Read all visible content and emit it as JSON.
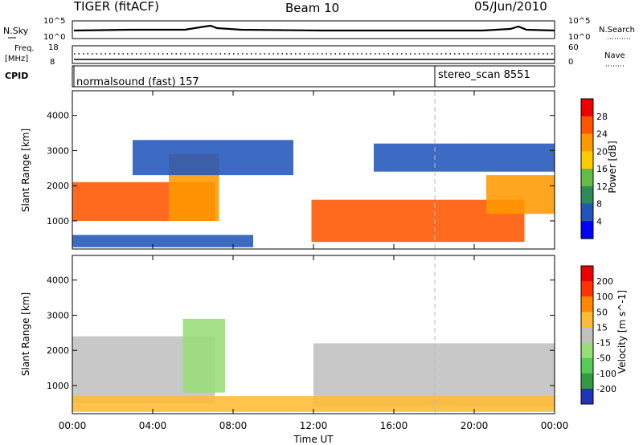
{
  "header": {
    "title": "TIGER (fitACF)",
    "beam": "Beam 10",
    "date": "05/Jun/2010"
  },
  "noise_panel": {
    "left_label": "N.Sky",
    "right_label": "N.Search",
    "left_ticks": [
      "10^5",
      "10^0"
    ],
    "right_ticks": [
      "10^5",
      "10^0"
    ]
  },
  "freq_panel": {
    "left_label_1": "Freq.",
    "left_label_2": "[MHz]",
    "right_label": "Nave",
    "left_ticks": [
      "18",
      "8"
    ],
    "right_ticks": [
      "60",
      "0"
    ]
  },
  "cpid_panel": {
    "label": "CPID",
    "segments": [
      {
        "name": "normalsound (fast) 157",
        "start_hour": 0
      },
      {
        "name": "stereo_scan 8551",
        "start_hour": 18
      }
    ]
  },
  "time_axis": {
    "label": "Time UT",
    "ticks": [
      "00:00",
      "04:00",
      "08:00",
      "12:00",
      "16:00",
      "20:00",
      "00:00"
    ],
    "range_hours": [
      0,
      24
    ]
  },
  "chart_data": [
    {
      "type": "heatmap",
      "quantity": "Power",
      "ylabel": "Slant Range [km]",
      "yticks": [
        "1000",
        "2000",
        "3000",
        "4000"
      ],
      "ylim": [
        200,
        4700
      ],
      "colorbar": {
        "label": "Power [dB]",
        "ticks": [
          "4",
          "8",
          "12",
          "16",
          "20",
          "24",
          "28"
        ],
        "colors": [
          "#0000ff",
          "#2255bb",
          "#2e8b57",
          "#66bb44",
          "#ffcc00",
          "#ff9900",
          "#ff5500",
          "#ee0000"
        ]
      },
      "regions": [
        {
          "t": [
            0.0,
            7.1
          ],
          "r": [
            1000,
            2100
          ],
          "level": 6
        },
        {
          "t": [
            4.8,
            7.3
          ],
          "r": [
            1000,
            2900
          ],
          "level": 5
        },
        {
          "t": [
            11.9,
            22.5
          ],
          "r": [
            400,
            1600
          ],
          "level": 6
        },
        {
          "t": [
            20.6,
            24.0
          ],
          "r": [
            1200,
            2300
          ],
          "level": 5
        },
        {
          "t": [
            0.0,
            9.0
          ],
          "r": [
            250,
            600
          ],
          "level": 1
        },
        {
          "t": [
            3.0,
            11.0
          ],
          "r": [
            2300,
            3300
          ],
          "level": 1
        },
        {
          "t": [
            15.0,
            24.0
          ],
          "r": [
            2400,
            3200
          ],
          "level": 1
        }
      ]
    },
    {
      "type": "heatmap",
      "quantity": "Velocity",
      "ylabel": "Slant Range [km]",
      "yticks": [
        "1000",
        "2000",
        "3000",
        "4000"
      ],
      "ylim": [
        200,
        4700
      ],
      "colorbar": {
        "label": "Velocity [m s^-1]",
        "ticks": [
          "200",
          "100",
          "50",
          "15",
          "-15",
          "-50",
          "-100",
          "-200"
        ],
        "colors": [
          "#2233bb",
          "#339944",
          "#55cc55",
          "#99dd77",
          "#c0c0c0",
          "#ffbb33",
          "#ff8800",
          "#ff3300",
          "#ee0000"
        ]
      },
      "regions": [
        {
          "t": [
            0.0,
            7.1
          ],
          "r": [
            500,
            2400
          ],
          "level": 4
        },
        {
          "t": [
            5.5,
            7.6
          ],
          "r": [
            800,
            2900
          ],
          "level": 3
        },
        {
          "t": [
            12.0,
            24.0
          ],
          "r": [
            400,
            2200
          ],
          "level": 4
        },
        {
          "t": [
            0.0,
            24.0
          ],
          "r": [
            250,
            700
          ],
          "level": 5
        }
      ]
    }
  ]
}
